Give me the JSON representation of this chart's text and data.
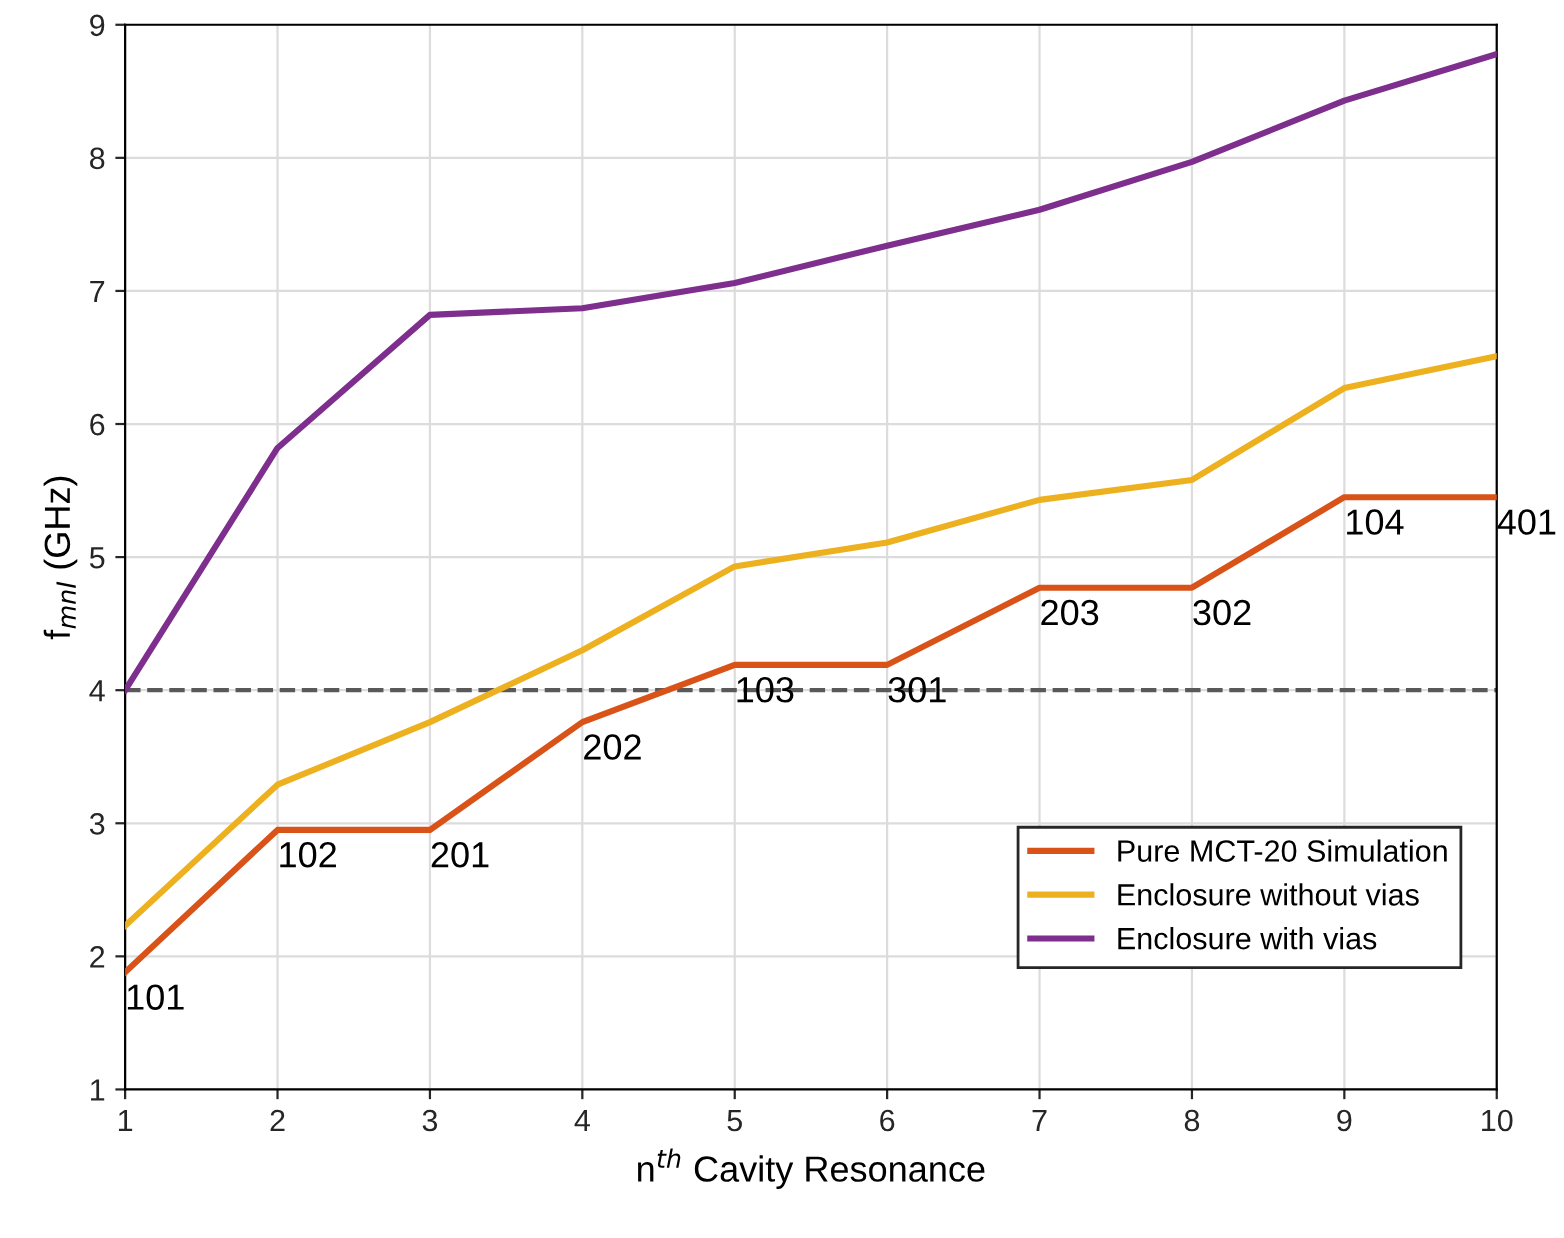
{
  "chart_data": {
    "type": "line",
    "xlabel": "n$^{th}$ Cavity Resonance",
    "ylabel": "f$_{mnl}$ (GHz)",
    "x": [
      1,
      2,
      3,
      4,
      5,
      6,
      7,
      8,
      9,
      10
    ],
    "series": [
      {
        "name": "Pure MCT-20 Simulation",
        "color": "#d95319",
        "values": [
          1.88,
          2.95,
          2.95,
          3.76,
          4.19,
          4.19,
          4.77,
          4.77,
          5.45,
          5.45
        ]
      },
      {
        "name": "Enclosure without vias",
        "color": "#edb120",
        "values": [
          2.23,
          3.29,
          3.76,
          4.3,
          4.93,
          5.11,
          5.43,
          5.58,
          6.27,
          6.51
        ]
      },
      {
        "name": "Enclosure with vias",
        "color": "#7e2f8e",
        "values": [
          4.0,
          5.82,
          6.82,
          6.87,
          7.06,
          7.34,
          7.61,
          7.97,
          8.43,
          8.78
        ]
      }
    ],
    "annotations": [
      {
        "text": "101",
        "x": 1,
        "y": 1.88
      },
      {
        "text": "102",
        "x": 2,
        "y": 2.95
      },
      {
        "text": "201",
        "x": 3,
        "y": 2.95
      },
      {
        "text": "202",
        "x": 4,
        "y": 3.76
      },
      {
        "text": "103",
        "x": 5,
        "y": 4.19
      },
      {
        "text": "301",
        "x": 6,
        "y": 4.19
      },
      {
        "text": "203",
        "x": 7,
        "y": 4.77
      },
      {
        "text": "302",
        "x": 8,
        "y": 4.77
      },
      {
        "text": "104",
        "x": 9,
        "y": 5.45
      },
      {
        "text": "401",
        "x": 10,
        "y": 5.45
      }
    ],
    "ref_lines": [
      {
        "axis": "y",
        "value": 4,
        "color": "#595959",
        "line_style": "dashed"
      }
    ],
    "xlim": [
      1,
      10
    ],
    "xticks": [
      1,
      2,
      3,
      4,
      5,
      6,
      7,
      8,
      9,
      10
    ],
    "ylim": [
      1,
      9
    ],
    "yticks": [
      1,
      2,
      3,
      4,
      5,
      6,
      7,
      8,
      9
    ],
    "grid": true,
    "legend": "bottom right",
    "marker": "none",
    "line_style": "solid"
  }
}
